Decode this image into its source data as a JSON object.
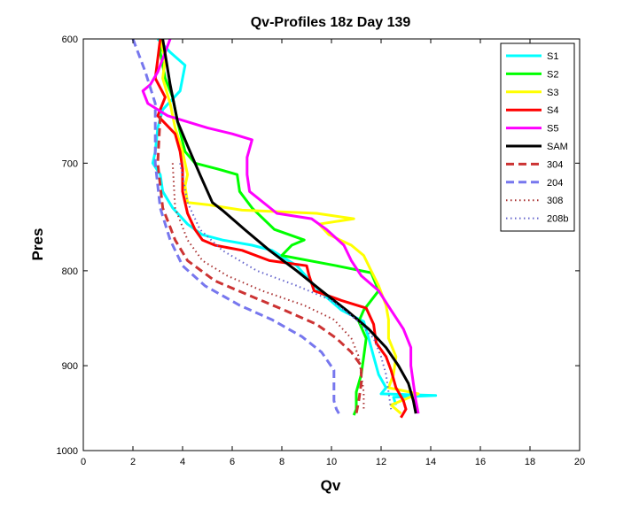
{
  "chart_data": {
    "type": "line",
    "title": "Qv-Profiles 18z Day 139",
    "xlabel": "Qv",
    "ylabel": "Pres",
    "xlim": [
      0,
      20
    ],
    "ylim": [
      600,
      1000
    ],
    "y_reversed": true,
    "y_scale": "log",
    "x_ticks": [
      0,
      2,
      4,
      6,
      8,
      10,
      12,
      14,
      16,
      18,
      20
    ],
    "y_ticks": [
      600,
      700,
      800,
      900,
      1000
    ],
    "grid": false,
    "legend_position": "top-right",
    "series": [
      {
        "name": "S1",
        "color": "#00ffff",
        "style": "solid",
        "width": 3,
        "points": [
          [
            3.0,
            600
          ],
          [
            3.5,
            610
          ],
          [
            4.1,
            620
          ],
          [
            3.9,
            640
          ],
          [
            3.2,
            655
          ],
          [
            3.0,
            670
          ],
          [
            2.9,
            690
          ],
          [
            2.8,
            700
          ],
          [
            3.1,
            710
          ],
          [
            3.2,
            725
          ],
          [
            3.6,
            740
          ],
          [
            4.2,
            755
          ],
          [
            4.8,
            765
          ],
          [
            5.6,
            770
          ],
          [
            6.8,
            775
          ],
          [
            7.6,
            780
          ],
          [
            8.6,
            795
          ],
          [
            9.5,
            820
          ],
          [
            10.4,
            840
          ],
          [
            11.3,
            852
          ],
          [
            11.5,
            870
          ],
          [
            11.7,
            890
          ],
          [
            11.9,
            910
          ],
          [
            12.2,
            925
          ],
          [
            12.0,
            932
          ],
          [
            14.2,
            934
          ],
          [
            12.5,
            936
          ],
          [
            12.6,
            945
          ]
        ]
      },
      {
        "name": "S2",
        "color": "#00ff00",
        "style": "solid",
        "width": 3,
        "points": [
          [
            3.2,
            600
          ],
          [
            3.1,
            610
          ],
          [
            3.3,
            630
          ],
          [
            3.6,
            645
          ],
          [
            3.8,
            665
          ],
          [
            4.1,
            690
          ],
          [
            4.5,
            700
          ],
          [
            5.4,
            705
          ],
          [
            6.2,
            710
          ],
          [
            6.3,
            725
          ],
          [
            6.8,
            740
          ],
          [
            7.7,
            760
          ],
          [
            8.9,
            770
          ],
          [
            8.4,
            775
          ],
          [
            8.0,
            785
          ],
          [
            10.2,
            795
          ],
          [
            11.6,
            802
          ],
          [
            11.9,
            820
          ],
          [
            11.3,
            840
          ],
          [
            11.1,
            852
          ],
          [
            11.4,
            870
          ],
          [
            11.3,
            890
          ],
          [
            11.2,
            910
          ],
          [
            11.0,
            930
          ],
          [
            11.0,
            940
          ],
          [
            11.0,
            950
          ],
          [
            10.9,
            957
          ]
        ]
      },
      {
        "name": "S3",
        "color": "#ffff00",
        "style": "solid",
        "width": 3,
        "points": [
          [
            3.1,
            600
          ],
          [
            3.3,
            615
          ],
          [
            3.2,
            630
          ],
          [
            3.5,
            650
          ],
          [
            3.7,
            670
          ],
          [
            4.0,
            690
          ],
          [
            4.2,
            710
          ],
          [
            4.1,
            720
          ],
          [
            4.2,
            735
          ],
          [
            5.0,
            737
          ],
          [
            6.4,
            742
          ],
          [
            9.4,
            745
          ],
          [
            10.9,
            750
          ],
          [
            9.5,
            755
          ],
          [
            9.9,
            765
          ],
          [
            10.8,
            775
          ],
          [
            11.3,
            785
          ],
          [
            11.6,
            800
          ],
          [
            11.9,
            815
          ],
          [
            12.2,
            835
          ],
          [
            12.3,
            850
          ],
          [
            12.3,
            870
          ],
          [
            12.6,
            890
          ],
          [
            12.5,
            910
          ],
          [
            12.3,
            925
          ],
          [
            13.5,
            932
          ],
          [
            12.4,
            945
          ],
          [
            12.8,
            955
          ]
        ]
      },
      {
        "name": "S4",
        "color": "#ff0000",
        "style": "solid",
        "width": 3,
        "points": [
          [
            3.1,
            600
          ],
          [
            3.0,
            615
          ],
          [
            2.9,
            630
          ],
          [
            3.3,
            645
          ],
          [
            3.0,
            660
          ],
          [
            3.7,
            675
          ],
          [
            3.9,
            690
          ],
          [
            4.0,
            705
          ],
          [
            4.0,
            725
          ],
          [
            4.2,
            745
          ],
          [
            4.5,
            760
          ],
          [
            4.8,
            770
          ],
          [
            5.3,
            775
          ],
          [
            6.4,
            780
          ],
          [
            7.5,
            790
          ],
          [
            9.0,
            795
          ],
          [
            9.1,
            805
          ],
          [
            9.3,
            820
          ],
          [
            10.4,
            830
          ],
          [
            11.4,
            838
          ],
          [
            11.7,
            855
          ],
          [
            11.8,
            875
          ],
          [
            12.2,
            890
          ],
          [
            12.4,
            905
          ],
          [
            12.6,
            925
          ],
          [
            12.9,
            940
          ],
          [
            13.0,
            950
          ],
          [
            12.8,
            960
          ]
        ]
      },
      {
        "name": "S5",
        "color": "#ff00ff",
        "style": "solid",
        "width": 3,
        "points": [
          [
            3.5,
            600
          ],
          [
            3.3,
            610
          ],
          [
            3.0,
            625
          ],
          [
            2.7,
            635
          ],
          [
            2.4,
            640
          ],
          [
            2.6,
            650
          ],
          [
            3.4,
            660
          ],
          [
            5.0,
            670
          ],
          [
            6.0,
            675
          ],
          [
            6.8,
            680
          ],
          [
            6.6,
            695
          ],
          [
            6.6,
            710
          ],
          [
            6.7,
            725
          ],
          [
            7.8,
            745
          ],
          [
            9.2,
            750
          ],
          [
            9.8,
            760
          ],
          [
            10.5,
            775
          ],
          [
            10.8,
            790
          ],
          [
            11.2,
            805
          ],
          [
            11.9,
            820
          ],
          [
            12.4,
            840
          ],
          [
            12.9,
            860
          ],
          [
            13.2,
            880
          ],
          [
            13.2,
            900
          ],
          [
            13.3,
            920
          ],
          [
            13.4,
            940
          ],
          [
            13.5,
            955
          ]
        ]
      },
      {
        "name": "SAM",
        "color": "#000000",
        "style": "solid",
        "width": 3,
        "points": [
          [
            3.2,
            600
          ],
          [
            3.5,
            635
          ],
          [
            3.8,
            665
          ],
          [
            4.2,
            685
          ],
          [
            4.7,
            710
          ],
          [
            5.2,
            735
          ],
          [
            5.6,
            742
          ],
          [
            6.5,
            760
          ],
          [
            7.5,
            780
          ],
          [
            8.6,
            800
          ],
          [
            9.6,
            820
          ],
          [
            10.6,
            840
          ],
          [
            11.5,
            860
          ],
          [
            12.2,
            880
          ],
          [
            12.7,
            900
          ],
          [
            13.1,
            920
          ],
          [
            13.3,
            940
          ],
          [
            13.4,
            955
          ]
        ]
      },
      {
        "name": "304",
        "color": "#cc3333",
        "style": "dashed",
        "width": 3,
        "points": [
          [
            3.1,
            660
          ],
          [
            3.0,
            700
          ],
          [
            3.2,
            740
          ],
          [
            3.7,
            770
          ],
          [
            4.2,
            790
          ],
          [
            5.3,
            810
          ],
          [
            6.7,
            825
          ],
          [
            8.1,
            840
          ],
          [
            9.4,
            855
          ],
          [
            10.2,
            870
          ],
          [
            10.8,
            885
          ],
          [
            11.2,
            900
          ],
          [
            11.2,
            920
          ],
          [
            11.1,
            940
          ],
          [
            11.0,
            955
          ]
        ]
      },
      {
        "name": "204",
        "color": "#7777ee",
        "style": "dashed",
        "width": 3,
        "points": [
          [
            2.0,
            600
          ],
          [
            2.5,
            625
          ],
          [
            2.9,
            650
          ],
          [
            2.9,
            700
          ],
          [
            3.1,
            740
          ],
          [
            3.5,
            770
          ],
          [
            4.0,
            795
          ],
          [
            4.9,
            815
          ],
          [
            6.3,
            835
          ],
          [
            7.6,
            850
          ],
          [
            8.8,
            868
          ],
          [
            9.6,
            885
          ],
          [
            10.1,
            905
          ],
          [
            10.1,
            925
          ],
          [
            10.1,
            940
          ],
          [
            10.2,
            950
          ],
          [
            10.3,
            955
          ]
        ]
      },
      {
        "name": "308",
        "color": "#aa3333",
        "style": "dotted",
        "width": 2,
        "points": [
          [
            3.6,
            700
          ],
          [
            3.7,
            740
          ],
          [
            4.2,
            770
          ],
          [
            4.8,
            790
          ],
          [
            5.8,
            805
          ],
          [
            7.2,
            820
          ],
          [
            8.9,
            835
          ],
          [
            10.1,
            850
          ],
          [
            10.8,
            870
          ],
          [
            11.1,
            890
          ],
          [
            11.2,
            910
          ],
          [
            11.3,
            930
          ],
          [
            11.3,
            950
          ]
        ]
      },
      {
        "name": "208b",
        "color": "#6666cc",
        "style": "dotted",
        "width": 2,
        "points": [
          [
            3.9,
            700
          ],
          [
            4.2,
            735
          ],
          [
            4.7,
            760
          ],
          [
            5.6,
            780
          ],
          [
            7.0,
            800
          ],
          [
            8.6,
            815
          ],
          [
            10.0,
            830
          ],
          [
            11.0,
            850
          ],
          [
            11.7,
            870
          ],
          [
            12.0,
            890
          ],
          [
            12.2,
            910
          ],
          [
            12.3,
            930
          ],
          [
            12.4,
            950
          ]
        ]
      }
    ]
  }
}
